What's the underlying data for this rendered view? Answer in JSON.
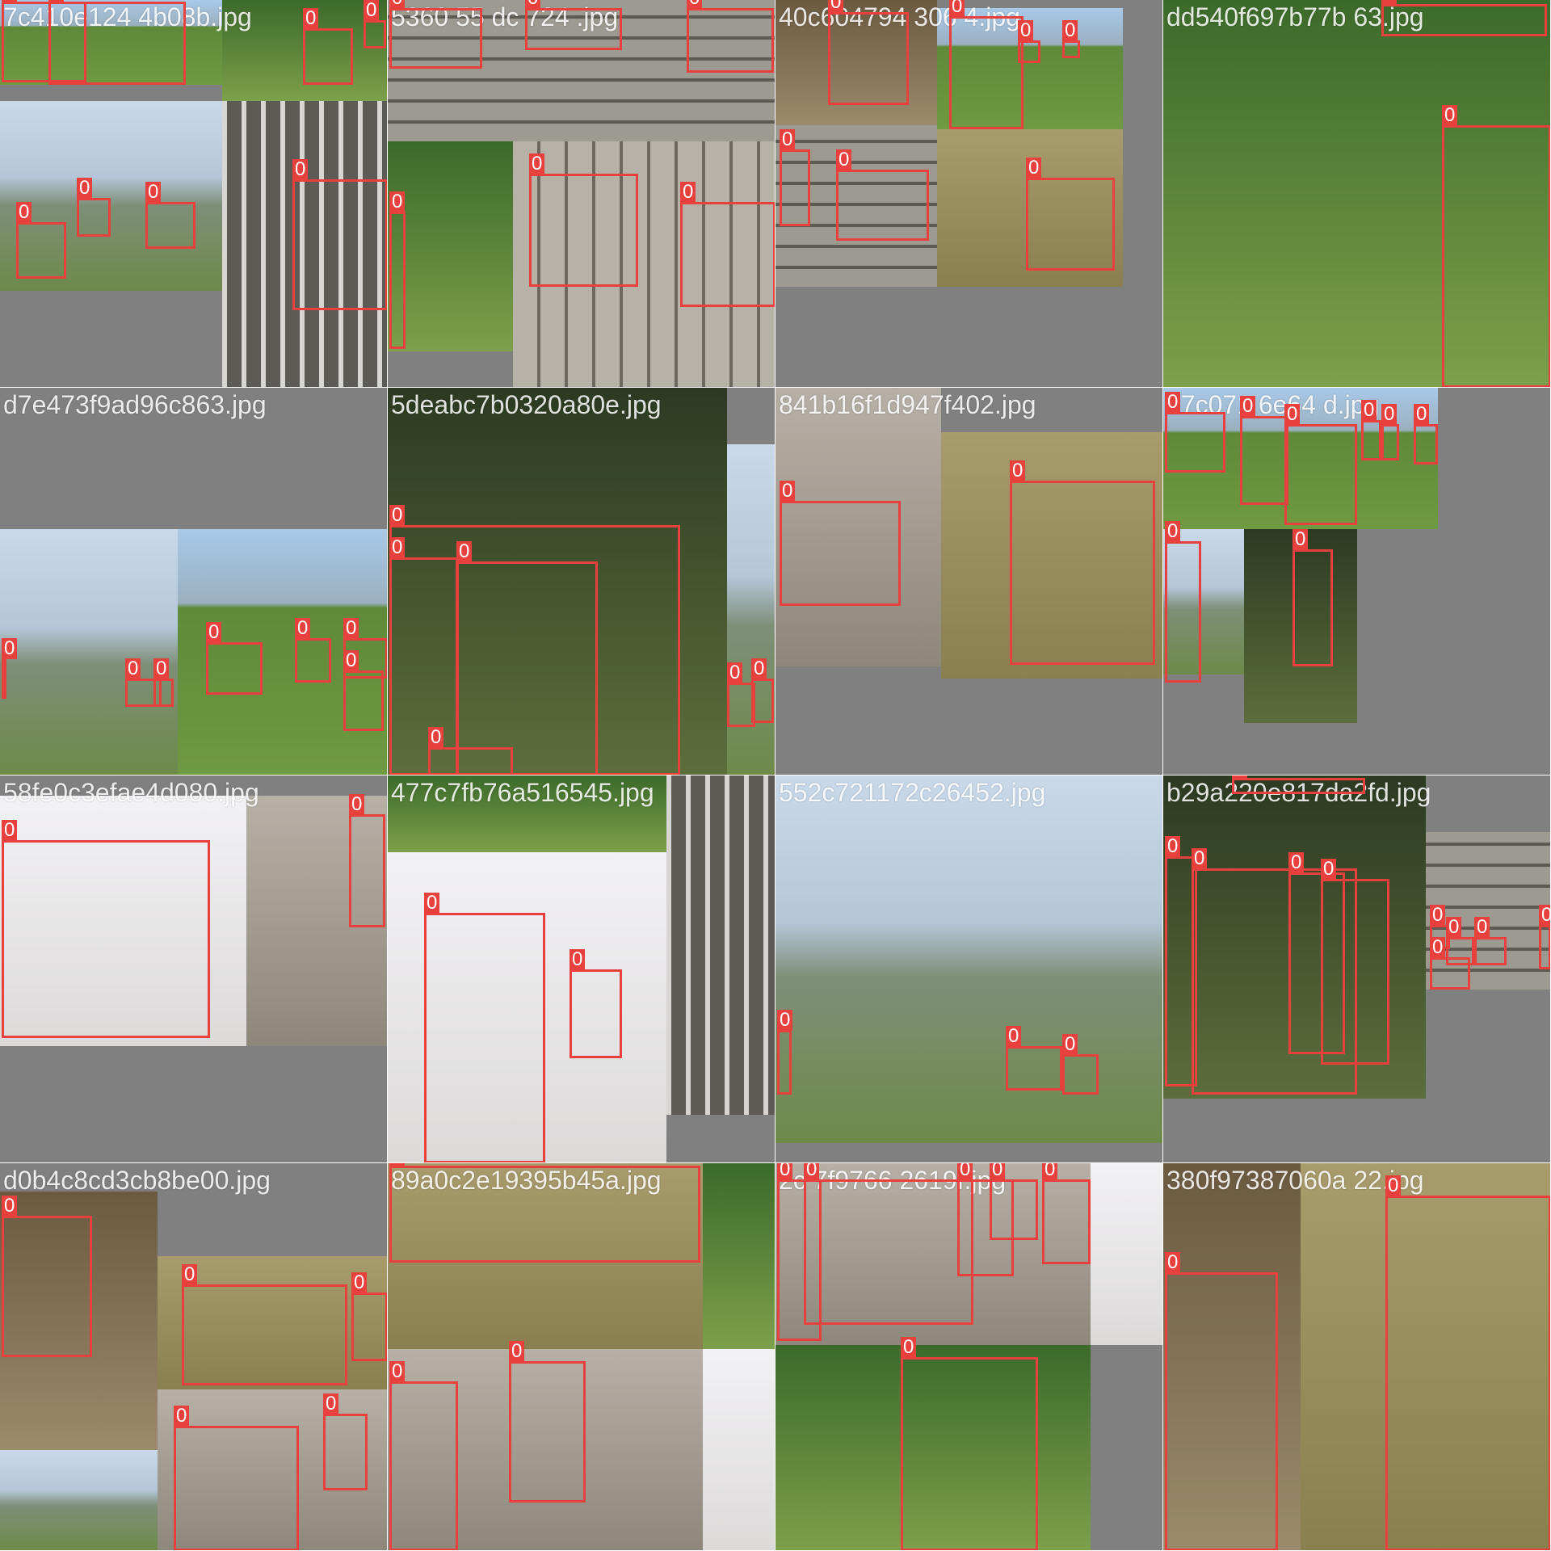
{
  "label_class": "0",
  "colors": {
    "box": "#e8403c",
    "pad": "#808080"
  },
  "tiles": [
    {
      "filename": "7c410e124 4b08b.jpg"
    },
    {
      "filename": "5360 55 dc 724 .jpg"
    },
    {
      "filename": "40c604794 306 4.jpg"
    },
    {
      "filename": "dd540f697b77b 63.jpg"
    },
    {
      "filename": "d7e473f9ad96c863.jpg"
    },
    {
      "filename": "5deabc7b0320a80e.jpg"
    },
    {
      "filename": "841b16f1d947f402.jpg"
    },
    {
      "filename": "e7c071 6e64 d.jpg"
    },
    {
      "filename": "58fe0c3efae4d080.jpg"
    },
    {
      "filename": "477c7fb76a516545.jpg"
    },
    {
      "filename": "552c721172c26452.jpg"
    },
    {
      "filename": "b29a220e817da2fd.jpg"
    },
    {
      "filename": "d0b4c8cd3cb8be00.jpg"
    },
    {
      "filename": "89a0c2e19395b45a.jpg"
    },
    {
      "filename": "2c 7f9766 2619f.jpg"
    },
    {
      "filename": "380f97387060a 22.jpg"
    }
  ]
}
